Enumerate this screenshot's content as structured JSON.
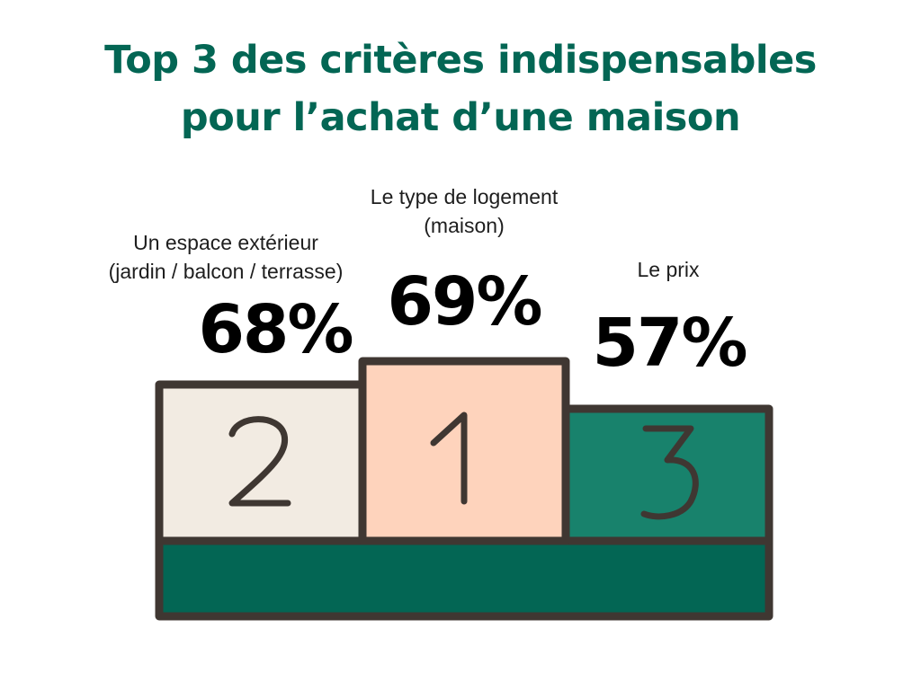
{
  "title": {
    "line1": "Top 3 des critères indispensables",
    "line2": "pour l’achat d’une maison",
    "color": "#036654"
  },
  "podium": [
    {
      "rank": "1",
      "label_line1": "Le type de logement",
      "label_line2": "(maison)",
      "percent": "69%",
      "value": 69,
      "fill": "#fed3bc"
    },
    {
      "rank": "2",
      "label_line1": "Un espace extérieur",
      "label_line2": "(jardin / balcon / terrasse)",
      "percent": "68%",
      "value": 68,
      "fill": "#f2ebe2"
    },
    {
      "rank": "3",
      "label_line1": "Le prix",
      "label_line2": "",
      "percent": "57%",
      "value": 57,
      "fill": "#18826c"
    }
  ],
  "colors": {
    "outline": "#3f3732",
    "base": "#036654"
  }
}
